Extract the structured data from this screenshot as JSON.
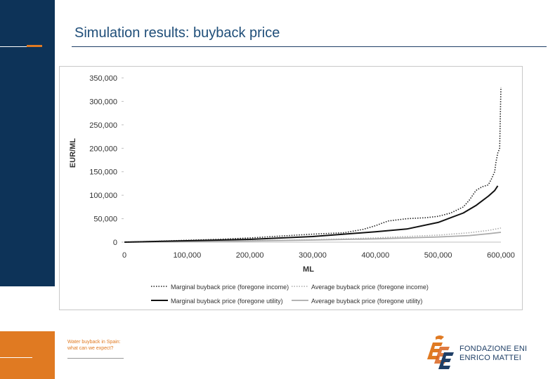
{
  "slide": {
    "title": "Simulation results: buyback price",
    "footer_line1": "Water buyback in Spain:",
    "footer_line2": "what can we expect?",
    "logo_line1": "FONDAZIONE ENI",
    "logo_line2": "ENRICO MATTEI"
  },
  "colors": {
    "navy": "#0d3358",
    "orange": "#e07a22",
    "title": "#1f4e79"
  },
  "chart_data": {
    "type": "line",
    "xlabel": "ML",
    "ylabel": "EUR/ML",
    "xlim": [
      0,
      600000
    ],
    "ylim": [
      0,
      350000
    ],
    "x_ticks": [
      "0",
      "100,000",
      "200,000",
      "300,000",
      "400,000",
      "500,000",
      "600,000"
    ],
    "y_ticks": [
      "0",
      "50,000",
      "100,000",
      "150,000",
      "200,000",
      "250,000",
      "300,000",
      "350,000"
    ],
    "grid": false,
    "legend_position": "bottom",
    "series": [
      {
        "name": "Marginal buyback price (foregone income)",
        "style": "dotted",
        "color": "#222222",
        "x": [
          0,
          50000,
          100000,
          150000,
          200000,
          250000,
          300000,
          350000,
          380000,
          400000,
          420000,
          450000,
          480000,
          500000,
          520000,
          540000,
          550000,
          560000,
          570000,
          580000,
          585000,
          590000,
          592000,
          595000,
          598000,
          600000
        ],
        "y": [
          0,
          2000,
          4000,
          6000,
          9000,
          13000,
          17000,
          20000,
          27000,
          35000,
          45000,
          50000,
          52000,
          55000,
          62000,
          75000,
          90000,
          110000,
          118000,
          122000,
          135000,
          150000,
          170000,
          190000,
          200000,
          330000
        ]
      },
      {
        "name": "Average buyback price (foregone income)",
        "style": "dotted",
        "color": "#aaaaaa",
        "x": [
          0,
          100000,
          200000,
          300000,
          400000,
          500000,
          550000,
          580000,
          600000
        ],
        "y": [
          0,
          1500,
          3000,
          5000,
          9000,
          15000,
          20000,
          25000,
          30000
        ]
      },
      {
        "name": "Marginal buyback price (foregone utility)",
        "style": "solid",
        "color": "#111111",
        "x": [
          0,
          100000,
          200000,
          300000,
          350000,
          400000,
          450000,
          500000,
          520000,
          540000,
          560000,
          570000,
          580000,
          590000,
          595000
        ],
        "y": [
          0,
          3000,
          6000,
          12000,
          17000,
          22000,
          28000,
          42000,
          52000,
          62000,
          78000,
          88000,
          98000,
          110000,
          120000
        ]
      },
      {
        "name": "Average buyback price (foregone utility)",
        "style": "solid",
        "color": "#aaaaaa",
        "x": [
          0,
          100000,
          200000,
          300000,
          400000,
          450000,
          500000,
          550000,
          580000,
          600000
        ],
        "y": [
          0,
          1000,
          2500,
          4500,
          7000,
          9000,
          11000,
          14000,
          18000,
          21000
        ]
      }
    ]
  }
}
